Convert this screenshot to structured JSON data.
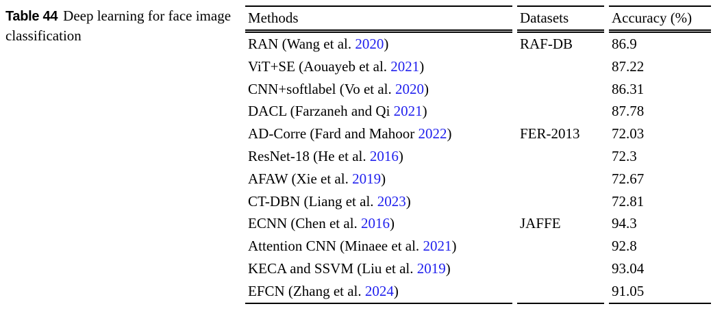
{
  "caption": {
    "label": "Table 44",
    "text": "Deep learning for face image classification"
  },
  "table": {
    "headers": [
      "Methods",
      "Datasets",
      "Accuracy (%)"
    ],
    "rows": [
      {
        "method_prefix": "RAN (Wang et al. ",
        "year": "2020",
        "method_suffix": ")",
        "dataset": "RAF-DB",
        "accuracy": "86.9"
      },
      {
        "method_prefix": "ViT+SE (Aouayeb et al. ",
        "year": "2021",
        "method_suffix": ")",
        "dataset": "",
        "accuracy": "87.22"
      },
      {
        "method_prefix": "CNN+softlabel (Vo et al. ",
        "year": "2020",
        "method_suffix": ")",
        "dataset": "",
        "accuracy": "86.31"
      },
      {
        "method_prefix": "DACL (Farzaneh and Qi ",
        "year": "2021",
        "method_suffix": ")",
        "dataset": "",
        "accuracy": "87.78"
      },
      {
        "method_prefix": "AD-Corre (Fard and Mahoor ",
        "year": "2022",
        "method_suffix": ")",
        "dataset": "FER-2013",
        "accuracy": "72.03"
      },
      {
        "method_prefix": "ResNet-18 (He et al. ",
        "year": "2016",
        "method_suffix": ")",
        "dataset": "",
        "accuracy": "72.3"
      },
      {
        "method_prefix": "AFAW (Xie et al. ",
        "year": "2019",
        "method_suffix": ")",
        "dataset": "",
        "accuracy": "72.67"
      },
      {
        "method_prefix": "CT-DBN (Liang et al. ",
        "year": "2023",
        "method_suffix": ")",
        "dataset": "",
        "accuracy": "72.81"
      },
      {
        "method_prefix": "ECNN (Chen et al. ",
        "year": "2016",
        "method_suffix": ")",
        "dataset": "JAFFE",
        "accuracy": "94.3"
      },
      {
        "method_prefix": "Attention CNN (Minaee et al. ",
        "year": "2021",
        "method_suffix": ")",
        "dataset": "",
        "accuracy": "92.8"
      },
      {
        "method_prefix": "KECA and SSVM (Liu et al. ",
        "year": "2019",
        "method_suffix": ")",
        "dataset": "",
        "accuracy": "93.04"
      },
      {
        "method_prefix": "EFCN (Zhang et al. ",
        "year": "2024",
        "method_suffix": ")",
        "dataset": "",
        "accuracy": "91.05"
      }
    ]
  },
  "colors": {
    "citation_link": "#2020ee",
    "text": "#000000",
    "rule": "#000000"
  }
}
